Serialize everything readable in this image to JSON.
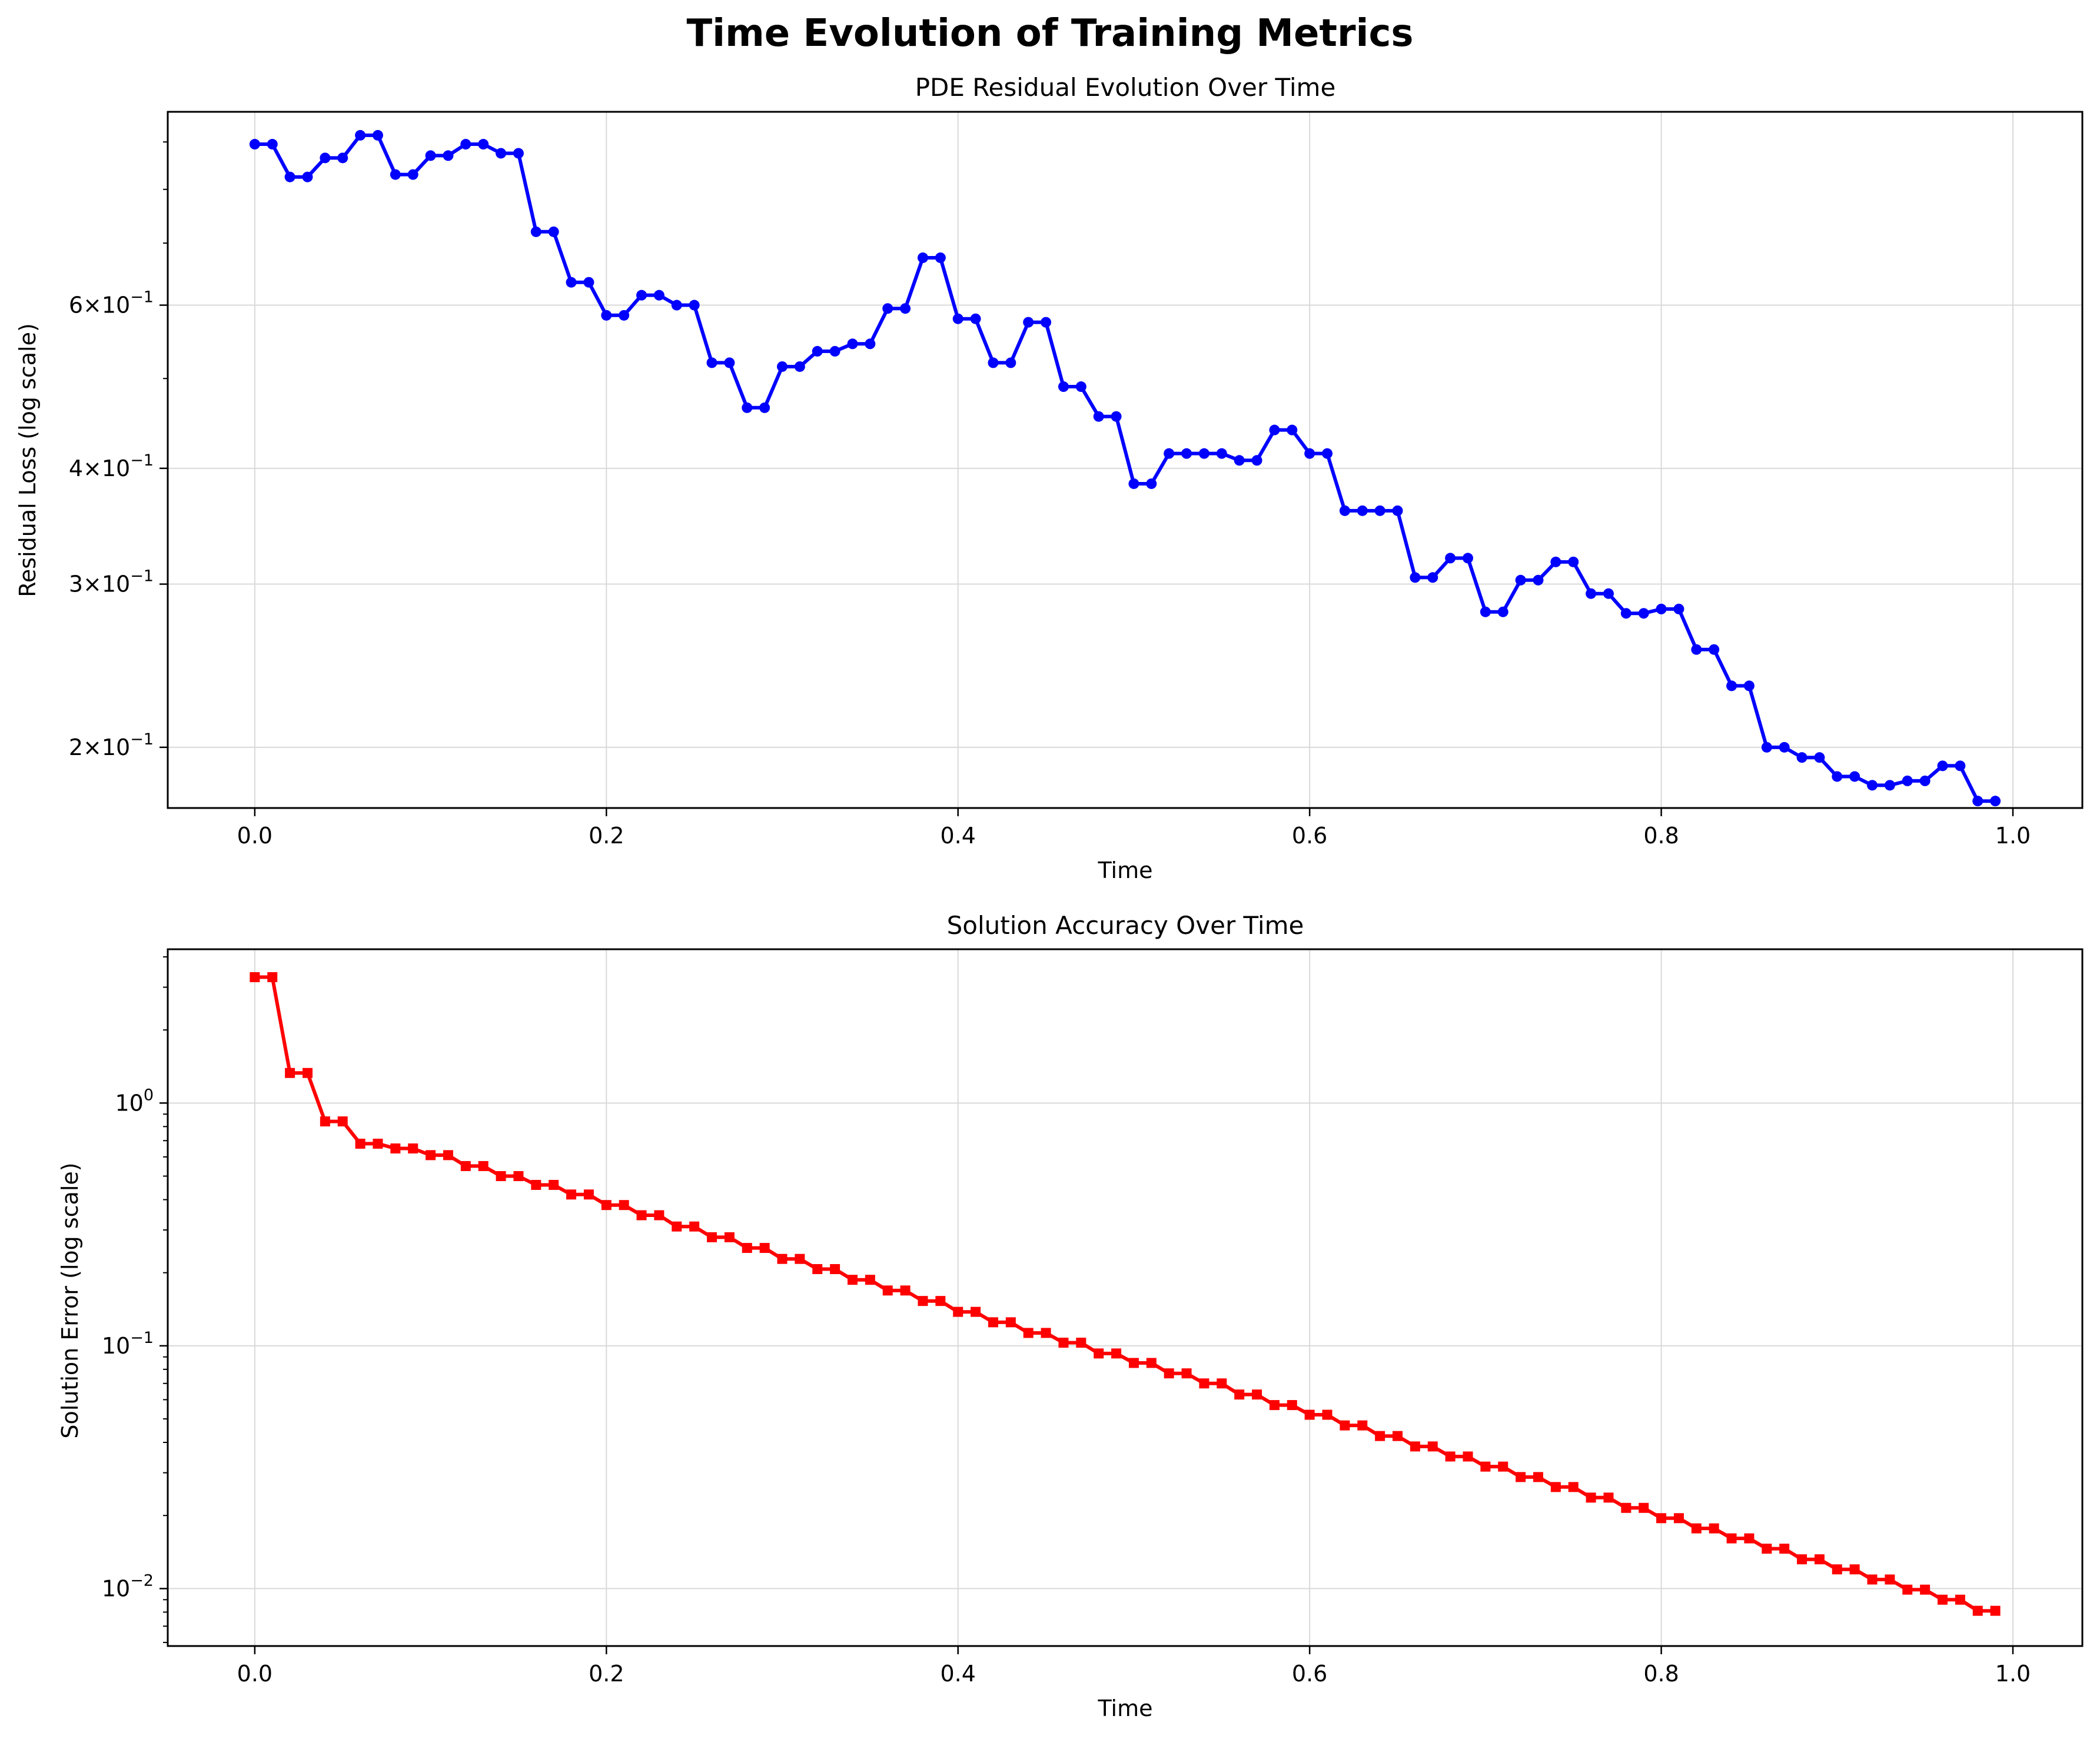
{
  "suptitle": "Time Evolution of Training Metrics",
  "colors": {
    "residual": "#0000ff",
    "error": "#ff0000",
    "grid": "#d9d9d9",
    "axes": "#000000"
  },
  "chart_data": [
    {
      "type": "line",
      "title": "PDE Residual Evolution Over Time",
      "xlabel": "Time",
      "ylabel": "Residual Loss (log scale)",
      "yscale": "log",
      "xlim": [
        -0.0495,
        1.0395
      ],
      "ylim": [
        0.172,
        0.97
      ],
      "grid": true,
      "marker": "circle",
      "x_ticks": [
        0.0,
        0.2,
        0.4,
        0.6,
        0.8,
        1.0
      ],
      "x_tick_labels": [
        "0.0",
        "0.2",
        "0.4",
        "0.6",
        "0.8",
        "1.0"
      ],
      "y_ticks": [
        0.2,
        0.3,
        0.4,
        0.6
      ],
      "y_tick_labels": [
        {
          "mant": "2",
          "exp": "−1"
        },
        {
          "mant": "3",
          "exp": "−1"
        },
        {
          "mant": "4",
          "exp": "−1"
        },
        {
          "mant": "6",
          "exp": "−1"
        }
      ],
      "y_minor_ticks": [
        0.5,
        0.7,
        0.8,
        0.9
      ],
      "series": [
        {
          "x": [
            0.0,
            0.01,
            0.02,
            0.03,
            0.04,
            0.05,
            0.06,
            0.07,
            0.08,
            0.09,
            0.1,
            0.11,
            0.12,
            0.13,
            0.14,
            0.15,
            0.16,
            0.17,
            0.18,
            0.19,
            0.2,
            0.21,
            0.22,
            0.23,
            0.24,
            0.25,
            0.26,
            0.27,
            0.28,
            0.29,
            0.3,
            0.31,
            0.32,
            0.33,
            0.34,
            0.35,
            0.36,
            0.37,
            0.38,
            0.39,
            0.4,
            0.41,
            0.42,
            0.43,
            0.44,
            0.45,
            0.46,
            0.47,
            0.48,
            0.49,
            0.5,
            0.51,
            0.52,
            0.53,
            0.54,
            0.55,
            0.56,
            0.57,
            0.58,
            0.59,
            0.6,
            0.61,
            0.62,
            0.63,
            0.64,
            0.65,
            0.66,
            0.67,
            0.68,
            0.69,
            0.7,
            0.71,
            0.72,
            0.73,
            0.74,
            0.75,
            0.76,
            0.77,
            0.78,
            0.79,
            0.8,
            0.81,
            0.82,
            0.83,
            0.84,
            0.85,
            0.86,
            0.87,
            0.88,
            0.89,
            0.9,
            0.91,
            0.92,
            0.93,
            0.94,
            0.95,
            0.96,
            0.97,
            0.98,
            0.99
          ],
          "y": [
            0.895,
            0.895,
            0.825,
            0.825,
            0.865,
            0.865,
            0.915,
            0.915,
            0.83,
            0.83,
            0.87,
            0.87,
            0.895,
            0.895,
            0.875,
            0.875,
            0.72,
            0.72,
            0.635,
            0.635,
            0.585,
            0.585,
            0.615,
            0.615,
            0.6,
            0.6,
            0.52,
            0.52,
            0.465,
            0.465,
            0.515,
            0.515,
            0.535,
            0.535,
            0.545,
            0.545,
            0.595,
            0.595,
            0.675,
            0.675,
            0.58,
            0.58,
            0.52,
            0.52,
            0.575,
            0.575,
            0.49,
            0.49,
            0.455,
            0.455,
            0.385,
            0.385,
            0.415,
            0.415,
            0.415,
            0.415,
            0.408,
            0.408,
            0.44,
            0.44,
            0.415,
            0.415,
            0.36,
            0.36,
            0.36,
            0.36,
            0.305,
            0.305,
            0.32,
            0.32,
            0.28,
            0.28,
            0.303,
            0.303,
            0.317,
            0.317,
            0.293,
            0.293,
            0.279,
            0.279,
            0.282,
            0.282,
            0.255,
            0.255,
            0.233,
            0.233,
            0.2,
            0.2,
            0.195,
            0.195,
            0.186,
            0.186,
            0.182,
            0.182,
            0.184,
            0.184,
            0.191,
            0.191,
            0.175,
            0.175
          ]
        }
      ]
    },
    {
      "type": "line",
      "title": "Solution Accuracy Over Time",
      "xlabel": "Time",
      "ylabel": "Solution Error (log scale)",
      "yscale": "log",
      "xlim": [
        -0.0495,
        1.0395
      ],
      "ylim": [
        0.0058,
        4.3
      ],
      "grid": true,
      "marker": "square",
      "x_ticks": [
        0.0,
        0.2,
        0.4,
        0.6,
        0.8,
        1.0
      ],
      "x_tick_labels": [
        "0.0",
        "0.2",
        "0.4",
        "0.6",
        "0.8",
        "1.0"
      ],
      "y_ticks": [
        0.01,
        0.1,
        1
      ],
      "y_tick_labels": [
        {
          "mant": "10",
          "exp": "−2"
        },
        {
          "mant": "10",
          "exp": "−1"
        },
        {
          "mant": "10",
          "exp": "0"
        }
      ],
      "y_minor_ticks": [
        0.006,
        0.007,
        0.008,
        0.009,
        0.02,
        0.03,
        0.04,
        0.05,
        0.06,
        0.07,
        0.08,
        0.09,
        0.2,
        0.3,
        0.4,
        0.5,
        0.6,
        0.7,
        0.8,
        0.9,
        2,
        3,
        4
      ],
      "series": [
        {
          "x": [
            0.0,
            0.01,
            0.02,
            0.03,
            0.04,
            0.05,
            0.06,
            0.07,
            0.08,
            0.09,
            0.1,
            0.11,
            0.12,
            0.13,
            0.14,
            0.15,
            0.16,
            0.17,
            0.18,
            0.19,
            0.2,
            0.21,
            0.22,
            0.23,
            0.24,
            0.25,
            0.26,
            0.27,
            0.28,
            0.29,
            0.3,
            0.31,
            0.32,
            0.33,
            0.34,
            0.35,
            0.36,
            0.37,
            0.38,
            0.39,
            0.4,
            0.41,
            0.42,
            0.43,
            0.44,
            0.45,
            0.46,
            0.47,
            0.48,
            0.49,
            0.5,
            0.51,
            0.52,
            0.53,
            0.54,
            0.55,
            0.56,
            0.57,
            0.58,
            0.59,
            0.6,
            0.61,
            0.62,
            0.63,
            0.64,
            0.65,
            0.66,
            0.67,
            0.68,
            0.69,
            0.7,
            0.71,
            0.72,
            0.73,
            0.74,
            0.75,
            0.76,
            0.77,
            0.78,
            0.79,
            0.8,
            0.81,
            0.82,
            0.83,
            0.84,
            0.85,
            0.86,
            0.87,
            0.88,
            0.89,
            0.9,
            0.91,
            0.92,
            0.93,
            0.94,
            0.95,
            0.96,
            0.97,
            0.98,
            0.99
          ],
          "y": [
            3.3,
            3.3,
            1.33,
            1.33,
            0.84,
            0.84,
            0.68,
            0.68,
            0.65,
            0.65,
            0.61,
            0.61,
            0.55,
            0.55,
            0.5,
            0.5,
            0.46,
            0.46,
            0.42,
            0.42,
            0.38,
            0.38,
            0.345,
            0.345,
            0.31,
            0.31,
            0.28,
            0.28,
            0.253,
            0.253,
            0.228,
            0.228,
            0.207,
            0.207,
            0.187,
            0.187,
            0.169,
            0.169,
            0.153,
            0.153,
            0.138,
            0.138,
            0.125,
            0.125,
            0.113,
            0.113,
            0.103,
            0.103,
            0.093,
            0.093,
            0.085,
            0.085,
            0.077,
            0.077,
            0.07,
            0.07,
            0.063,
            0.063,
            0.057,
            0.057,
            0.052,
            0.052,
            0.047,
            0.047,
            0.0425,
            0.0425,
            0.0385,
            0.0385,
            0.035,
            0.035,
            0.0318,
            0.0318,
            0.0288,
            0.0288,
            0.0262,
            0.0262,
            0.0237,
            0.0237,
            0.0215,
            0.0215,
            0.0195,
            0.0195,
            0.0177,
            0.0177,
            0.0161,
            0.0161,
            0.0146,
            0.0146,
            0.0132,
            0.0132,
            0.012,
            0.012,
            0.0109,
            0.0109,
            0.0099,
            0.0099,
            0.009,
            0.009,
            0.0081,
            0.0081
          ]
        }
      ]
    }
  ]
}
